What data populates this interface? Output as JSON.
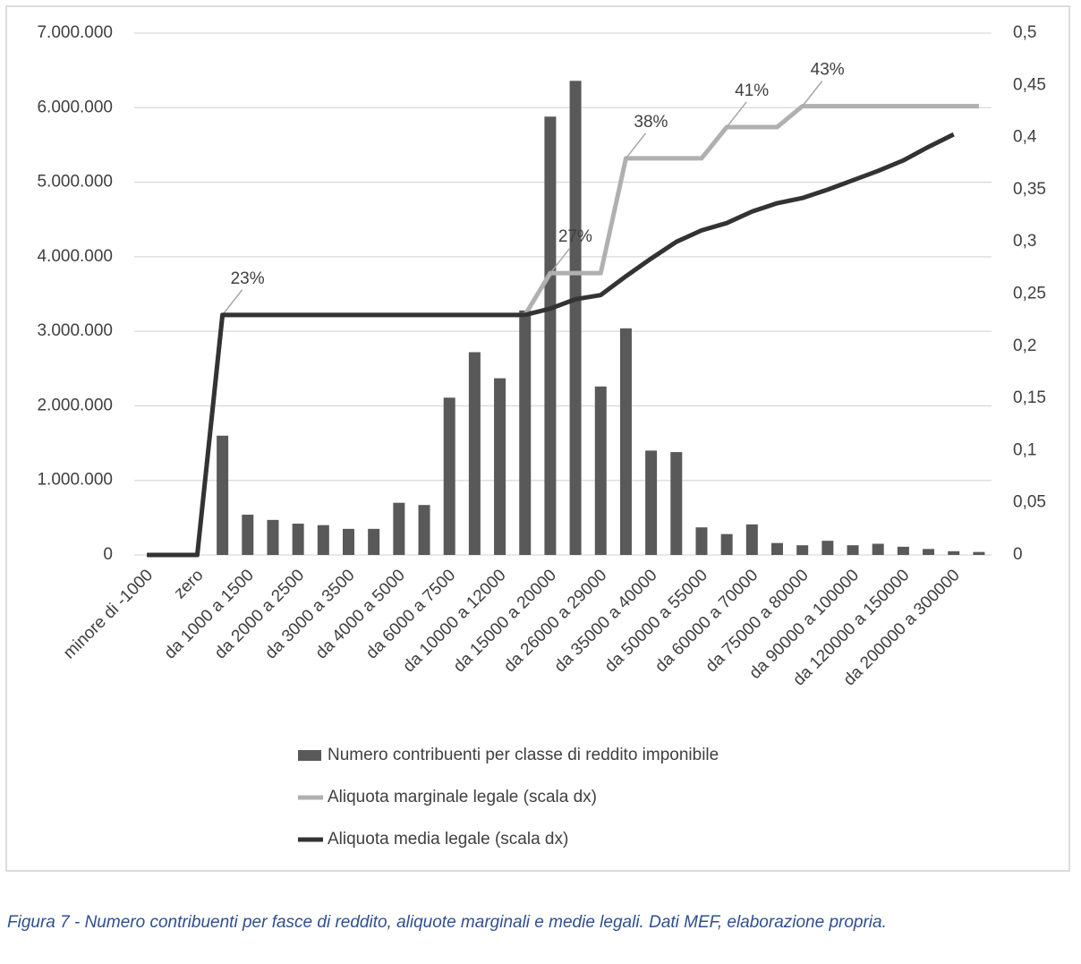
{
  "chart_data": {
    "type": "bar",
    "categories": [
      "minore di -1000",
      null,
      "zero",
      null,
      "da 1000 a 1500",
      null,
      "da 2000 a 2500",
      null,
      "da 3000 a 3500",
      null,
      "da 4000 a 5000",
      null,
      "da 6000 a 7500",
      null,
      "da 10000 a 12000",
      null,
      "da 15000 a 20000",
      null,
      "da 26000 a 29000",
      null,
      "da 35000 a 40000",
      null,
      "da 50000 a 55000",
      null,
      "da 60000 a 70000",
      null,
      "da 75000 a 80000",
      null,
      "da 90000 a 100000",
      null,
      "da 120000 a 150000",
      null,
      "da 200000 a 300000",
      null
    ],
    "series": [
      {
        "name": "Numero contribuenti per classe di reddito imponibile",
        "type": "bar",
        "color": "#595959",
        "values": [
          0,
          0,
          0,
          1600000,
          540000,
          470000,
          420000,
          400000,
          350000,
          350000,
          700000,
          670000,
          2110000,
          2720000,
          2370000,
          3280000,
          5880000,
          6360000,
          2260000,
          3040000,
          1400000,
          1380000,
          370000,
          280000,
          410000,
          160000,
          130000,
          190000,
          130000,
          150000,
          110000,
          80000,
          50000,
          40000
        ]
      },
      {
        "name": "Aliquota marginale legale (scala dx)",
        "type": "line",
        "axis": "y2",
        "color": "#b0b0b0",
        "values": [
          0,
          0,
          0,
          0.23,
          0.23,
          0.23,
          0.23,
          0.23,
          0.23,
          0.23,
          0.23,
          0.23,
          0.23,
          0.23,
          0.23,
          0.23,
          0.27,
          0.27,
          0.27,
          0.38,
          0.38,
          0.38,
          0.38,
          0.41,
          0.41,
          0.41,
          0.43,
          0.43,
          0.43,
          0.43,
          0.43,
          0.43,
          0.43,
          0.43
        ],
        "value_labels": [
          null,
          null,
          null,
          "23%",
          null,
          null,
          null,
          null,
          null,
          null,
          null,
          null,
          null,
          null,
          null,
          null,
          "27%",
          null,
          null,
          "38%",
          null,
          null,
          null,
          "41%",
          null,
          null,
          "43%",
          null,
          null,
          null,
          null,
          null,
          null,
          null
        ]
      },
      {
        "name": "Aliquota media legale (scala dx)",
        "type": "line",
        "axis": "y2",
        "color": "#333333",
        "values": [
          0,
          0,
          0,
          0.23,
          0.23,
          0.23,
          0.23,
          0.23,
          0.23,
          0.23,
          0.23,
          0.23,
          0.23,
          0.23,
          0.23,
          0.23,
          0.236,
          0.245,
          0.249,
          0.267,
          0.284,
          0.3,
          0.311,
          0.318,
          0.329,
          0.337,
          0.342,
          0.35,
          0.359,
          0.368,
          0.378,
          0.391,
          0.403,
          null
        ]
      }
    ],
    "ylim": [
      0,
      7000000
    ],
    "yticks": [
      0,
      {
        "value": 1000000,
        "label": "1.000.000"
      },
      {
        "value": 2000000,
        "label": "2.000.000"
      },
      {
        "value": 3000000,
        "label": "3.000.000"
      },
      {
        "value": 4000000,
        "label": "4.000.000"
      },
      {
        "value": 5000000,
        "label": "5.000.000"
      },
      {
        "value": 6000000,
        "label": "6.000.000"
      },
      {
        "value": 7000000,
        "label": "7.000.000"
      }
    ],
    "y2lim": [
      0,
      0.5
    ],
    "y2ticks": [
      0,
      {
        "value": 0.05,
        "label": "0,05"
      },
      {
        "value": 0.1,
        "label": "0,1"
      },
      {
        "value": 0.15,
        "label": "0,15"
      },
      {
        "value": 0.2,
        "label": "0,2"
      },
      {
        "value": 0.25,
        "label": "0,25"
      },
      {
        "value": 0.3,
        "label": "0,3"
      },
      {
        "value": 0.35,
        "label": "0,35"
      },
      {
        "value": 0.4,
        "label": "0,4"
      },
      {
        "value": 0.45,
        "label": "0,45"
      },
      {
        "value": 0.5,
        "label": "0,5"
      }
    ],
    "grid": true,
    "legend": "bottom",
    "caption": "Figura 7 - Numero contribuenti per fasce di reddito, aliquote marginali e medie legali. Dati MEF, elaborazione propria."
  }
}
